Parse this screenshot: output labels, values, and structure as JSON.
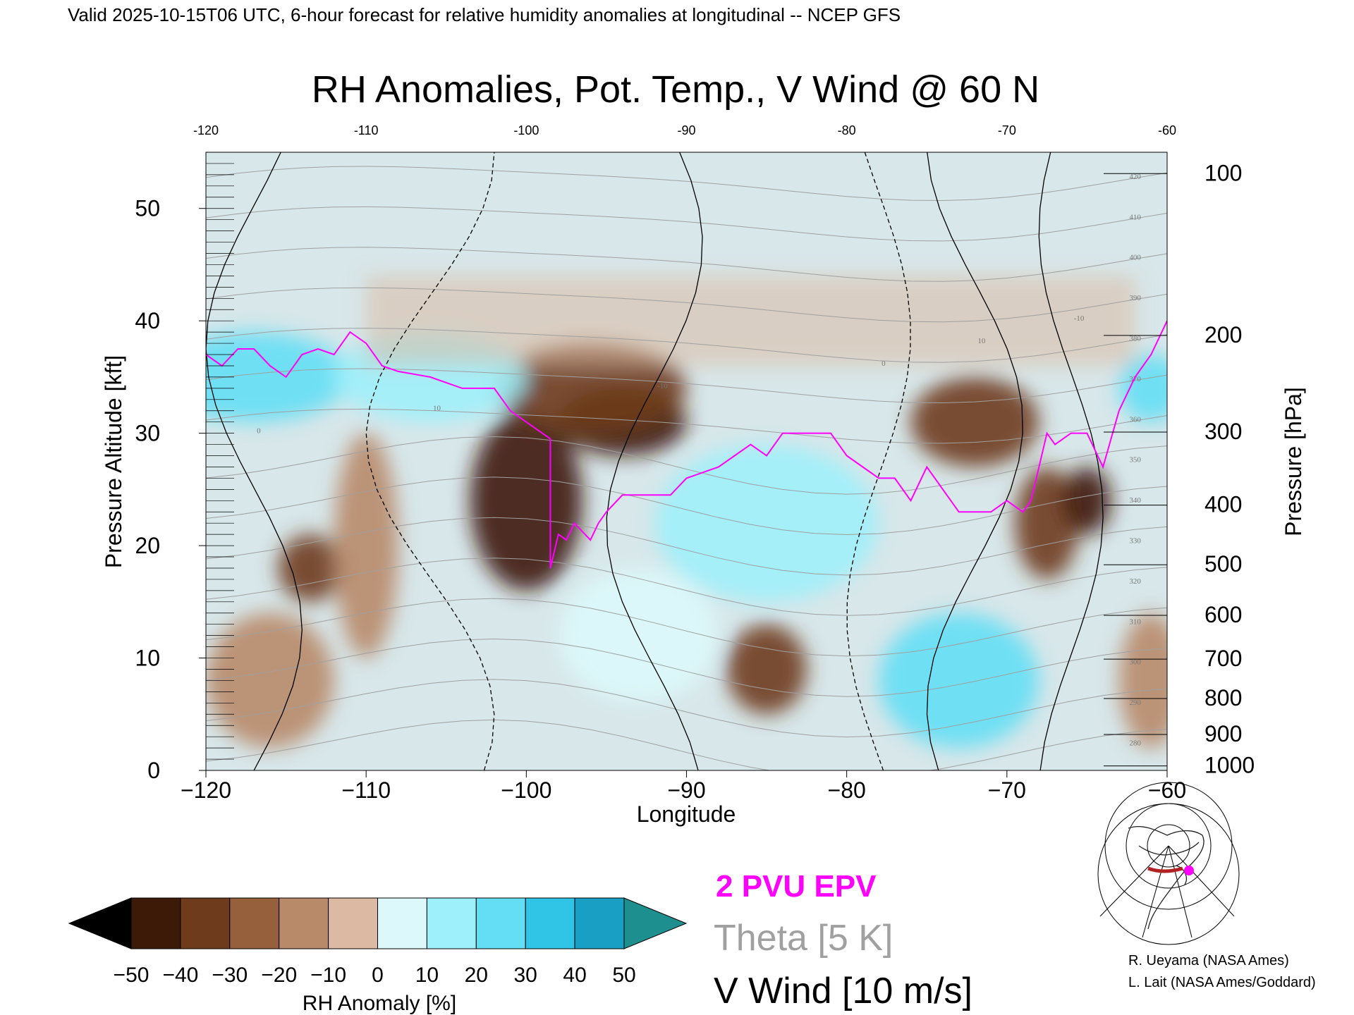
{
  "header": "Valid 2025-10-15T06 UTC, 6-hour forecast for relative humidity anomalies at longitudinal -- NCEP GFS",
  "title": "RH Anomalies, Pot. Temp., V Wind @ 60 N",
  "chart_data": {
    "type": "heatmap",
    "title": "RH Anomalies, Pot. Temp., V Wind @ 60 N",
    "xlabel": "Longitude",
    "ylabel_left": "Pressure Altitude [kft]",
    "ylabel_right": "Pressure [hPa]",
    "xlim": [
      -120,
      -60
    ],
    "ylim": [
      0,
      55
    ],
    "x_ticks": [
      -120,
      -110,
      -100,
      -90,
      -80,
      -70,
      -60
    ],
    "y_ticks": [
      0,
      10,
      20,
      30,
      40,
      50
    ],
    "pressure_ticks": [
      {
        "label": "100",
        "kft": 53.1
      },
      {
        "label": "200",
        "kft": 38.7
      },
      {
        "label": "300",
        "kft": 30.1
      },
      {
        "label": "400",
        "kft": 23.6
      },
      {
        "label": "500",
        "kft": 18.3
      },
      {
        "label": "600",
        "kft": 13.8
      },
      {
        "label": "700",
        "kft": 9.9
      },
      {
        "label": "800",
        "kft": 6.4
      },
      {
        "label": "900",
        "kft": 3.2
      },
      {
        "label": "1000",
        "kft": 0.4
      }
    ],
    "colorbar": {
      "label": "RH Anomaly [%]",
      "ticks": [
        -50,
        -40,
        -30,
        -20,
        -10,
        0,
        10,
        20,
        30,
        40,
        50
      ],
      "colors": [
        "#000000",
        "#3d1a08",
        "#6e3b1c",
        "#96603c",
        "#b88a6a",
        "#dbb9a3",
        "#f6e6dc",
        "#dcf8fb",
        "#9ef0fa",
        "#64def4",
        "#30c4e6",
        "#1a9fc4",
        "#0b7a9e",
        "#1d8f8f"
      ]
    },
    "rh_anomaly_regions": [
      {
        "lon": -100,
        "kft": 24,
        "rx": 3.5,
        "ry": 8,
        "value": -50
      },
      {
        "lon": -94,
        "kft": 31,
        "rx": 4,
        "ry": 3,
        "value": -50
      },
      {
        "lon": -96,
        "kft": 34,
        "rx": 6,
        "ry": 4,
        "value": -35
      },
      {
        "lon": -72,
        "kft": 31,
        "rx": 4,
        "ry": 4,
        "value": -35
      },
      {
        "lon": -113.5,
        "kft": 18,
        "rx": 2,
        "ry": 3,
        "value": -35
      },
      {
        "lon": -85,
        "kft": 9,
        "rx": 2.5,
        "ry": 4,
        "value": -40
      },
      {
        "lon": -67.5,
        "kft": 22,
        "rx": 2,
        "ry": 5,
        "value": -35
      },
      {
        "lon": -65,
        "kft": 24,
        "rx": 1.5,
        "ry": 3,
        "value": -45
      },
      {
        "lon": -110,
        "kft": 20,
        "rx": 2,
        "ry": 10,
        "value": -15
      },
      {
        "lon": -116,
        "kft": 8,
        "rx": 4,
        "ry": 6,
        "value": -20
      },
      {
        "lon": -61,
        "kft": 8,
        "rx": 2,
        "ry": 6,
        "value": -20
      },
      {
        "lon": -117,
        "kft": 35,
        "rx": 6,
        "ry": 4,
        "value": 35
      },
      {
        "lon": -106,
        "kft": 35,
        "rx": 6,
        "ry": 4,
        "value": 25
      },
      {
        "lon": -85,
        "kft": 22,
        "rx": 7,
        "ry": 7,
        "value": 20
      },
      {
        "lon": -73,
        "kft": 8,
        "rx": 5,
        "ry": 6,
        "value": 30
      },
      {
        "lon": -93,
        "kft": 12,
        "rx": 5,
        "ry": 6,
        "value": 15
      },
      {
        "lon": -61,
        "kft": 34,
        "rx": 2,
        "ry": 3,
        "value": 35
      }
    ],
    "v_wind_contour_labels": [
      "0",
      "10",
      "-10"
    ],
    "theta_contour_labels": [
      "280",
      "290",
      "300",
      "310",
      "320",
      "330",
      "340",
      "350",
      "360",
      "370",
      "380",
      "390",
      "400",
      "410",
      "420"
    ],
    "epv_2pvu_line": [
      [
        -120,
        37
      ],
      [
        -119,
        36
      ],
      [
        -118,
        37.5
      ],
      [
        -117,
        37.5
      ],
      [
        -116,
        36
      ],
      [
        -115,
        35
      ],
      [
        -114,
        37
      ],
      [
        -113,
        37.5
      ],
      [
        -112,
        37
      ],
      [
        -111,
        39
      ],
      [
        -110,
        38
      ],
      [
        -109,
        36
      ],
      [
        -108,
        35.5
      ],
      [
        -106,
        35
      ],
      [
        -104,
        34
      ],
      [
        -102,
        34
      ],
      [
        -101,
        32
      ],
      [
        -100,
        31
      ],
      [
        -99,
        30
      ],
      [
        -98.5,
        29.5
      ],
      [
        -98.5,
        18
      ],
      [
        -98,
        21
      ],
      [
        -97.5,
        20.5
      ],
      [
        -97,
        22
      ],
      [
        -96,
        20.5
      ],
      [
        -95.5,
        22
      ],
      [
        -95,
        23
      ],
      [
        -94,
        24.5
      ],
      [
        -93,
        24.5
      ],
      [
        -91,
        24.5
      ],
      [
        -90,
        26
      ],
      [
        -88,
        27
      ],
      [
        -87,
        28
      ],
      [
        -86,
        29
      ],
      [
        -85,
        28
      ],
      [
        -84,
        30
      ],
      [
        -83,
        30
      ],
      [
        -81,
        30
      ],
      [
        -80,
        28
      ],
      [
        -79,
        27
      ],
      [
        -78,
        26
      ],
      [
        -77,
        26
      ],
      [
        -76,
        24
      ],
      [
        -75,
        27
      ],
      [
        -74,
        25
      ],
      [
        -73,
        23
      ],
      [
        -71,
        23
      ],
      [
        -70,
        24
      ],
      [
        -69,
        23
      ],
      [
        -68.5,
        24
      ],
      [
        -68,
        27
      ],
      [
        -67.5,
        30
      ],
      [
        -67,
        29
      ],
      [
        -66,
        30
      ],
      [
        -65,
        30
      ],
      [
        -64,
        27
      ],
      [
        -63,
        32
      ],
      [
        -62,
        35
      ],
      [
        -61,
        37
      ],
      [
        -60,
        40
      ]
    ],
    "legend": [
      {
        "label": "2 PVU EPV",
        "color": "#ff00ff"
      },
      {
        "label": "Theta [5 K]",
        "color": "#a0a0a0"
      },
      {
        "label": "V Wind [10 m/s]",
        "color": "#000000"
      }
    ]
  },
  "credits": [
    "R. Ueyama (NASA Ames)",
    "L. Lait (NASA Ames/Goddard)"
  ]
}
